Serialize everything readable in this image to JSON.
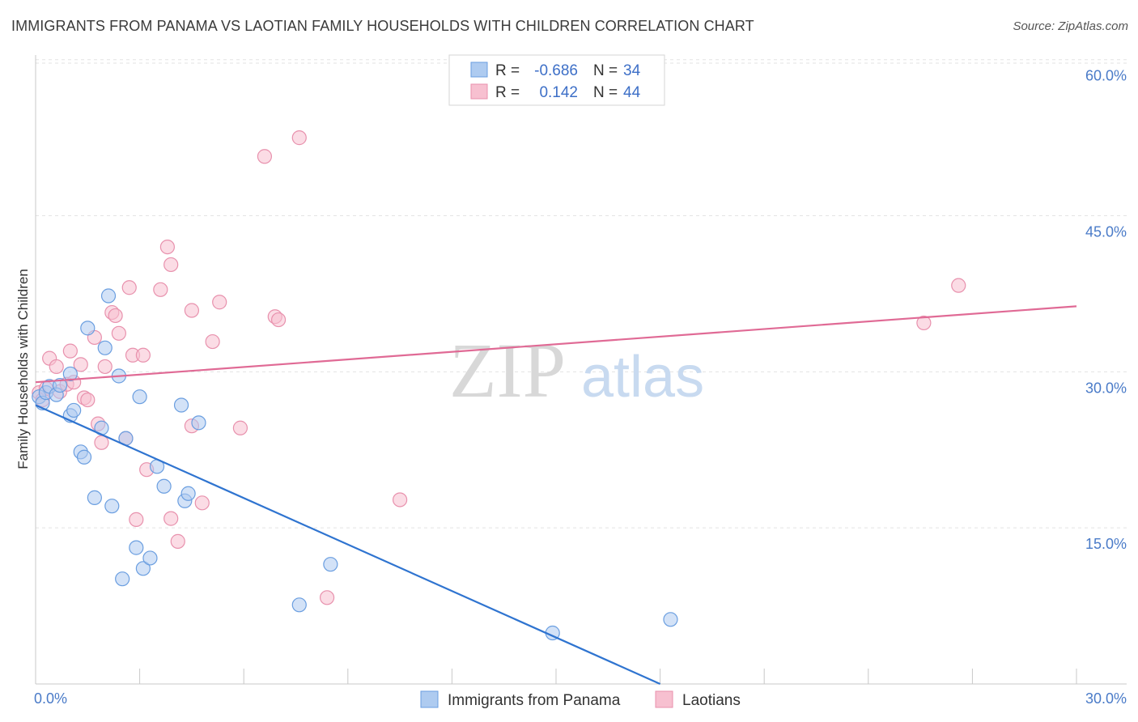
{
  "header": {
    "title": "IMMIGRANTS FROM PANAMA VS LAOTIAN FAMILY HOUSEHOLDS WITH CHILDREN CORRELATION CHART",
    "source": "Source: ZipAtlas.com"
  },
  "watermark": {
    "zip": "ZIP",
    "atlas": "atlas"
  },
  "legend": {
    "rows": [
      {
        "r_label": "R =",
        "r_value": "-0.686",
        "n_label": "N =",
        "n_value": "34"
      },
      {
        "r_label": "R =",
        "r_value": "0.142",
        "n_label": "N =",
        "n_value": "44"
      }
    ]
  },
  "colors": {
    "panama_fill": "#aecbf0",
    "panama_stroke": "#6a9ee0",
    "panama_line": "#2f74d0",
    "laos_fill": "#f7c0d0",
    "laos_stroke": "#e891ad",
    "laos_line": "#e06a95",
    "grid": "#e3e3e3",
    "axis_text": "#4a7bc8"
  },
  "chart_data": {
    "type": "scatter",
    "title": "IMMIGRANTS FROM PANAMA VS LAOTIAN FAMILY HOUSEHOLDS WITH CHILDREN CORRELATION CHART",
    "ylabel": "Family Households with Children",
    "xlabel": "",
    "xlim": [
      0,
      30
    ],
    "ylim": [
      0,
      62
    ],
    "x_tick_labels": [
      "0.0%",
      "30.0%"
    ],
    "y_ticks": [
      15,
      30,
      45,
      60
    ],
    "y_tick_labels": [
      "15.0%",
      "30.0%",
      "45.0%",
      "60.0%"
    ],
    "series": [
      {
        "name": "Immigrants from Panama",
        "trend": [
          [
            0,
            26.8
          ],
          [
            18.0,
            0.0
          ]
        ],
        "points": [
          [
            0.1,
            27.6
          ],
          [
            0.2,
            27.0
          ],
          [
            0.3,
            28.0
          ],
          [
            0.4,
            28.6
          ],
          [
            0.6,
            27.8
          ],
          [
            0.7,
            28.7
          ],
          [
            1.0,
            25.8
          ],
          [
            1.0,
            29.8
          ],
          [
            1.1,
            26.3
          ],
          [
            1.3,
            22.3
          ],
          [
            1.4,
            21.8
          ],
          [
            1.5,
            34.2
          ],
          [
            1.7,
            17.9
          ],
          [
            1.9,
            24.6
          ],
          [
            2.0,
            32.3
          ],
          [
            2.1,
            37.3
          ],
          [
            2.2,
            17.1
          ],
          [
            2.4,
            29.6
          ],
          [
            2.5,
            10.1
          ],
          [
            2.6,
            23.6
          ],
          [
            2.9,
            13.1
          ],
          [
            3.0,
            27.6
          ],
          [
            3.1,
            11.1
          ],
          [
            3.3,
            12.1
          ],
          [
            3.5,
            20.9
          ],
          [
            3.7,
            19.0
          ],
          [
            4.2,
            26.8
          ],
          [
            4.3,
            17.6
          ],
          [
            4.4,
            18.3
          ],
          [
            4.7,
            25.1
          ],
          [
            7.6,
            7.6
          ],
          [
            8.5,
            11.5
          ],
          [
            14.9,
            4.9
          ],
          [
            18.3,
            6.2
          ]
        ]
      },
      {
        "name": "Laotians",
        "trend": [
          [
            0,
            29.0
          ],
          [
            30.0,
            36.3
          ]
        ],
        "points": [
          [
            0.1,
            28.0
          ],
          [
            0.2,
            27.3
          ],
          [
            0.3,
            28.4
          ],
          [
            0.4,
            31.3
          ],
          [
            0.6,
            30.5
          ],
          [
            0.7,
            28.1
          ],
          [
            0.9,
            28.8
          ],
          [
            1.0,
            32.0
          ],
          [
            1.1,
            29.0
          ],
          [
            1.3,
            30.7
          ],
          [
            1.4,
            27.5
          ],
          [
            1.5,
            27.3
          ],
          [
            1.7,
            33.3
          ],
          [
            1.8,
            25.0
          ],
          [
            1.9,
            23.2
          ],
          [
            2.0,
            30.5
          ],
          [
            2.2,
            35.7
          ],
          [
            2.3,
            35.4
          ],
          [
            2.4,
            33.7
          ],
          [
            2.6,
            23.6
          ],
          [
            2.7,
            38.1
          ],
          [
            2.8,
            31.6
          ],
          [
            2.9,
            15.8
          ],
          [
            3.1,
            31.6
          ],
          [
            3.2,
            20.6
          ],
          [
            3.6,
            37.9
          ],
          [
            3.8,
            42.0
          ],
          [
            3.9,
            15.9
          ],
          [
            3.9,
            40.3
          ],
          [
            4.1,
            13.7
          ],
          [
            4.5,
            24.8
          ],
          [
            4.5,
            35.9
          ],
          [
            4.8,
            17.4
          ],
          [
            5.1,
            32.9
          ],
          [
            5.3,
            36.7
          ],
          [
            5.9,
            24.6
          ],
          [
            6.6,
            50.7
          ],
          [
            6.9,
            35.3
          ],
          [
            7.0,
            35.0
          ],
          [
            7.6,
            52.5
          ],
          [
            8.4,
            8.3
          ],
          [
            10.5,
            17.7
          ],
          [
            25.6,
            34.7
          ],
          [
            26.6,
            38.3
          ]
        ]
      }
    ]
  }
}
